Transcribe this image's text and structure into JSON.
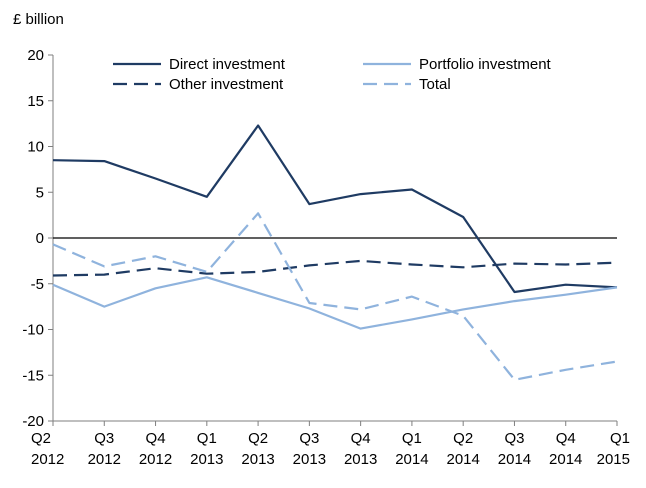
{
  "chart_data": {
    "type": "line",
    "ylabel": "£ billion",
    "xlabel": "",
    "ylim": [
      -20,
      20
    ],
    "y_ticks": [
      20,
      15,
      10,
      5,
      0,
      -5,
      -10,
      -15,
      -20
    ],
    "y_tick_labels": [
      "20",
      "15",
      "10",
      "5",
      "0",
      "-5",
      "-10",
      "-15",
      "-20"
    ],
    "categories": [
      {
        "q": "Q2",
        "year": "2012"
      },
      {
        "q": "Q3",
        "year": "2012"
      },
      {
        "q": "Q4",
        "year": "2012"
      },
      {
        "q": "Q1",
        "year": "2013"
      },
      {
        "q": "Q2",
        "year": "2013"
      },
      {
        "q": "Q3",
        "year": "2013"
      },
      {
        "q": "Q4",
        "year": "2013"
      },
      {
        "q": "Q1",
        "year": "2014"
      },
      {
        "q": "Q2",
        "year": "2014"
      },
      {
        "q": "Q3",
        "year": "2014"
      },
      {
        "q": "Q4",
        "year": "2014"
      },
      {
        "q": "Q1",
        "year": "2015"
      }
    ],
    "series": [
      {
        "name": "Direct investment",
        "color": "#1f3b63",
        "dash": "solid",
        "values": [
          8.5,
          8.4,
          6.5,
          4.5,
          12.3,
          3.7,
          4.8,
          5.3,
          2.3,
          -5.9,
          -5.1,
          -5.4
        ]
      },
      {
        "name": "Portfolio investment",
        "color": "#8fb3dd",
        "dash": "solid",
        "values": [
          -5.1,
          -7.5,
          -5.5,
          -4.3,
          -6.0,
          -7.7,
          -9.9,
          -8.9,
          -7.8,
          -6.9,
          -6.2,
          -5.4
        ]
      },
      {
        "name": "Other investment",
        "color": "#1f3b63",
        "dash": "dashed",
        "values": [
          -4.1,
          -4.0,
          -3.3,
          -3.9,
          -3.7,
          -3.0,
          -2.5,
          -2.9,
          -3.2,
          -2.8,
          -2.9,
          -2.7
        ]
      },
      {
        "name": "Total",
        "color": "#8fb3dd",
        "dash": "dashed",
        "values": [
          -0.7,
          -3.1,
          -2.0,
          -3.7,
          2.7,
          -7.1,
          -7.8,
          -6.4,
          -8.5,
          -15.5,
          -14.4,
          -13.5
        ]
      }
    ],
    "legend": {
      "placement": "top",
      "columns": 2
    },
    "grid": false,
    "zero_line": true
  }
}
